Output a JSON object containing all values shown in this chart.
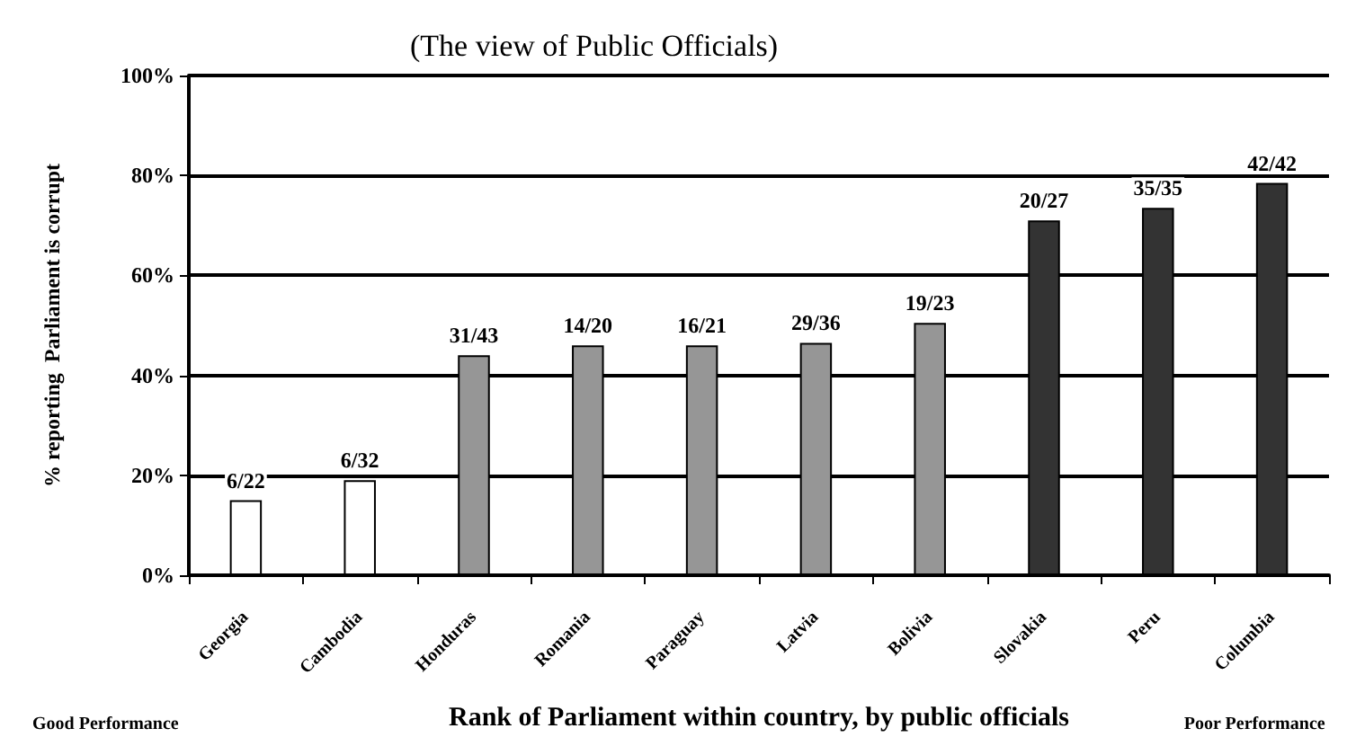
{
  "chart_data": {
    "type": "bar",
    "title": "(The view of Public Officials)",
    "xlabel": "Rank of Parliament within country, by public officials",
    "ylabel": "% reporting  Parliament is corrupt",
    "categories": [
      "Georgia",
      "Cambodia",
      "Honduras",
      "Romania",
      "Paraguay",
      "Latvia",
      "Bolivia",
      "Slovakia",
      "Peru",
      "Columbia"
    ],
    "values": [
      15,
      19,
      44,
      46,
      46,
      46.5,
      50.5,
      71,
      73.5,
      78.5
    ],
    "colors": [
      "#ffffff",
      "#ffffff",
      "#969696",
      "#969696",
      "#969696",
      "#969696",
      "#969696",
      "#333333",
      "#333333",
      "#333333"
    ],
    "value_labels": [
      "6/22",
      "6/32",
      "31/43",
      "14/20",
      "16/21",
      "29/36",
      "19/23",
      "20/27",
      "35/35",
      "42/42"
    ],
    "ylim": [
      0,
      100
    ],
    "yticks": [
      {
        "value": 0,
        "label": "0%"
      },
      {
        "value": 20,
        "label": "20%"
      },
      {
        "value": 40,
        "label": "40%"
      },
      {
        "value": 60,
        "label": "60%"
      },
      {
        "value": 80,
        "label": "80%"
      },
      {
        "value": 100,
        "label": "100%"
      }
    ],
    "grid": "y",
    "annotations": [
      "Good Performance",
      "Poor Performance"
    ]
  }
}
